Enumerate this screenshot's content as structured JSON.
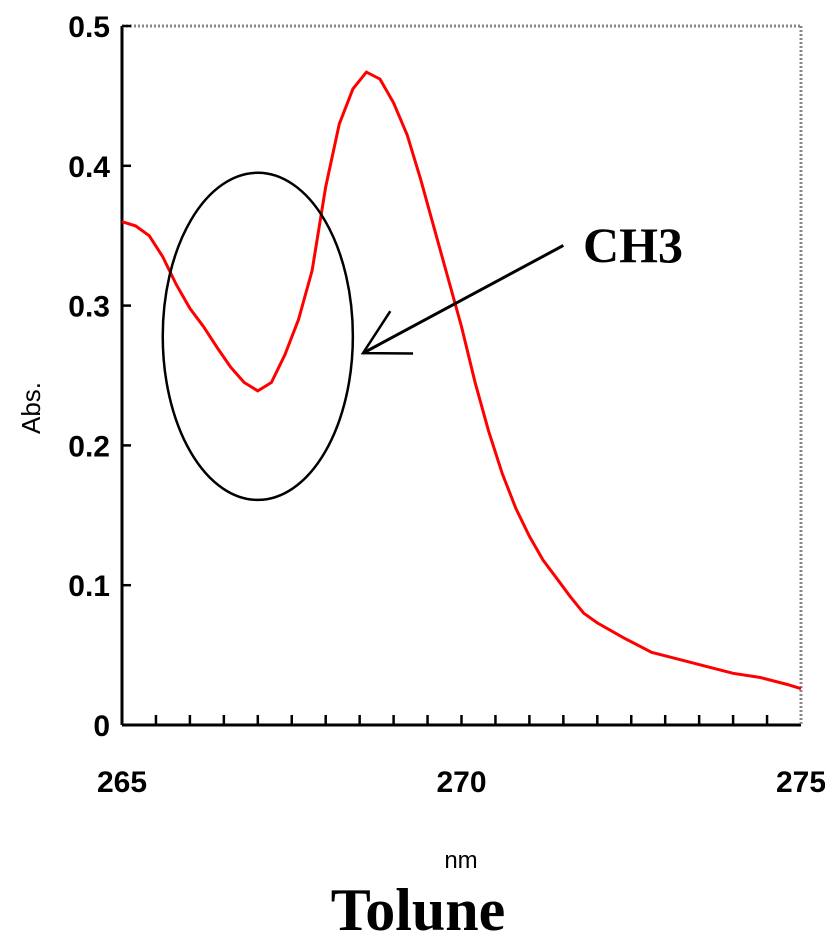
{
  "chart_data": {
    "type": "line",
    "title": "Tolune",
    "xlabel": "nm",
    "ylabel": "Abs.",
    "xlim": [
      265,
      275
    ],
    "ylim": [
      0,
      0.5
    ],
    "x_ticks": [
      265,
      270,
      275
    ],
    "y_ticks": [
      0,
      0.1,
      0.2,
      0.3,
      0.4,
      0.5
    ],
    "series_color": "#ff0000",
    "series": [
      {
        "x": [
          265.0,
          265.2,
          265.4,
          265.6,
          265.8,
          266.0,
          266.2,
          266.4,
          266.6,
          266.8,
          267.0,
          267.2,
          267.4,
          267.6,
          267.8,
          268.0,
          268.2,
          268.4,
          268.6,
          268.8,
          269.0,
          269.2,
          269.4,
          269.6,
          269.8,
          270.0,
          270.2,
          270.4,
          270.6,
          270.8,
          271.0,
          271.2,
          271.4,
          271.6,
          271.8,
          272.0,
          272.4,
          272.8,
          273.2,
          273.6,
          274.0,
          274.4,
          274.8,
          275.0
        ],
        "y": [
          0.36,
          0.357,
          0.35,
          0.335,
          0.315,
          0.298,
          0.285,
          0.27,
          0.256,
          0.245,
          0.239,
          0.245,
          0.265,
          0.29,
          0.325,
          0.385,
          0.43,
          0.455,
          0.467,
          0.462,
          0.445,
          0.422,
          0.39,
          0.355,
          0.32,
          0.285,
          0.245,
          0.21,
          0.18,
          0.155,
          0.135,
          0.118,
          0.105,
          0.092,
          0.08,
          0.073,
          0.062,
          0.052,
          0.047,
          0.042,
          0.037,
          0.034,
          0.029,
          0.026
        ]
      }
    ],
    "annotation": {
      "text": "CH3",
      "ellipse_center": [
        267.0,
        0.278
      ],
      "ellipse_radii": [
        1.4,
        0.117
      ],
      "arrow_from": [
        271.5,
        0.343
      ],
      "arrow_to": [
        268.55,
        0.266
      ]
    },
    "grid": false,
    "legend": "none"
  }
}
